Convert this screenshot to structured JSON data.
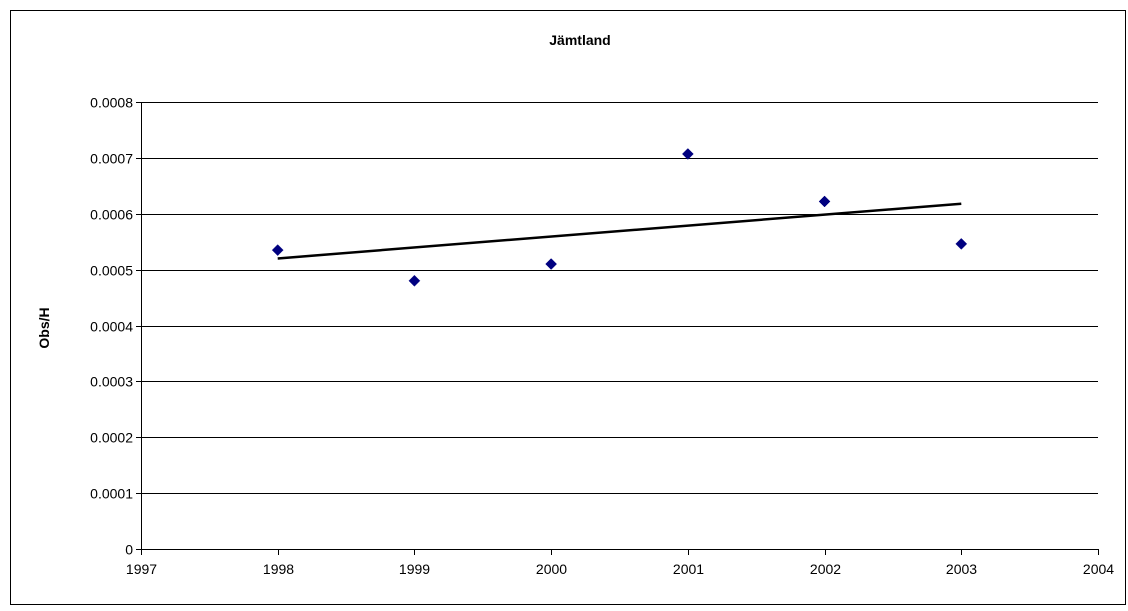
{
  "chart_data": {
    "type": "scatter",
    "title": "Jämtland",
    "xlabel": "",
    "ylabel": "Obs/H",
    "xlim": [
      1997,
      2004
    ],
    "ylim": [
      0,
      0.0008
    ],
    "x_ticks": [
      "1997",
      "1998",
      "1999",
      "2000",
      "2001",
      "2002",
      "2003",
      "2004"
    ],
    "y_ticks": [
      "0",
      "0.0001",
      "0.0002",
      "0.0003",
      "0.0004",
      "0.0005",
      "0.0006",
      "0.0007",
      "0.0008"
    ],
    "grid": "horizontal",
    "legend": "none",
    "marker": "diamond",
    "marker_color": "#000080",
    "trend_color": "#000000",
    "series": [
      {
        "x": [
          1998,
          1999,
          2000,
          2001,
          2002,
          2003
        ],
        "y": [
          0.000535,
          0.00048,
          0.00051,
          0.000707,
          0.000622,
          0.000546
        ]
      }
    ],
    "trendline": {
      "type": "linear",
      "x": [
        1998,
        2003
      ],
      "y": [
        0.00052,
        0.000618
      ]
    }
  }
}
